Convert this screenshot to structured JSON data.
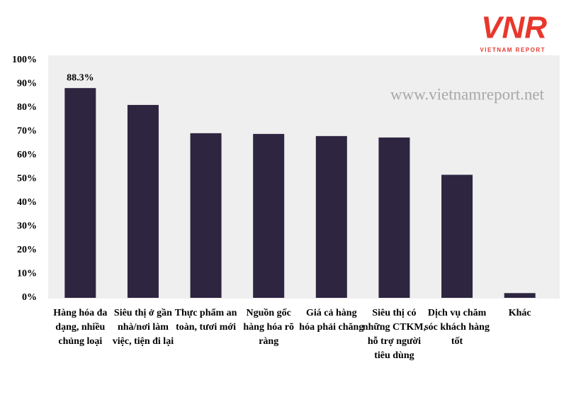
{
  "logo": {
    "mark": "VNR",
    "name": "VIETNAM REPORT"
  },
  "chart_data": {
    "type": "bar",
    "watermark": "www.vietnamreport.net",
    "categories": [
      "Hàng hóa đa dạng, nhiều chủng loại",
      "Siêu thị ở gần nhà/nơi làm việc, tiện đi lại",
      "Thực phẩm an toàn, tươi mới",
      "Nguồn gốc hàng hóa rõ ràng",
      "Giá cả hàng hóa phải chăng",
      "Siêu thị có những CTKM, hỗ trợ người tiêu dùng",
      "Dịch vụ chăm sóc khách hàng tốt",
      "Khác"
    ],
    "values": [
      88.3,
      81.2,
      69.3,
      69.0,
      68.1,
      67.5,
      51.8,
      2.0
    ],
    "value_labels": [
      "88.3%",
      null,
      null,
      null,
      null,
      null,
      null,
      null
    ],
    "color": "#2e2541",
    "ylim": [
      0,
      100
    ],
    "yticks": [
      {
        "value": 0,
        "label": "0%"
      },
      {
        "value": 10,
        "label": "10%"
      },
      {
        "value": 20,
        "label": "20%"
      },
      {
        "value": 30,
        "label": "30%"
      },
      {
        "value": 40,
        "label": "40%"
      },
      {
        "value": 50,
        "label": "50%"
      },
      {
        "value": 60,
        "label": "60%"
      },
      {
        "value": 70,
        "label": "70%"
      },
      {
        "value": 80,
        "label": "80%"
      },
      {
        "value": 90,
        "label": "90%"
      },
      {
        "value": 100,
        "label": "100%"
      }
    ],
    "grid": false
  }
}
